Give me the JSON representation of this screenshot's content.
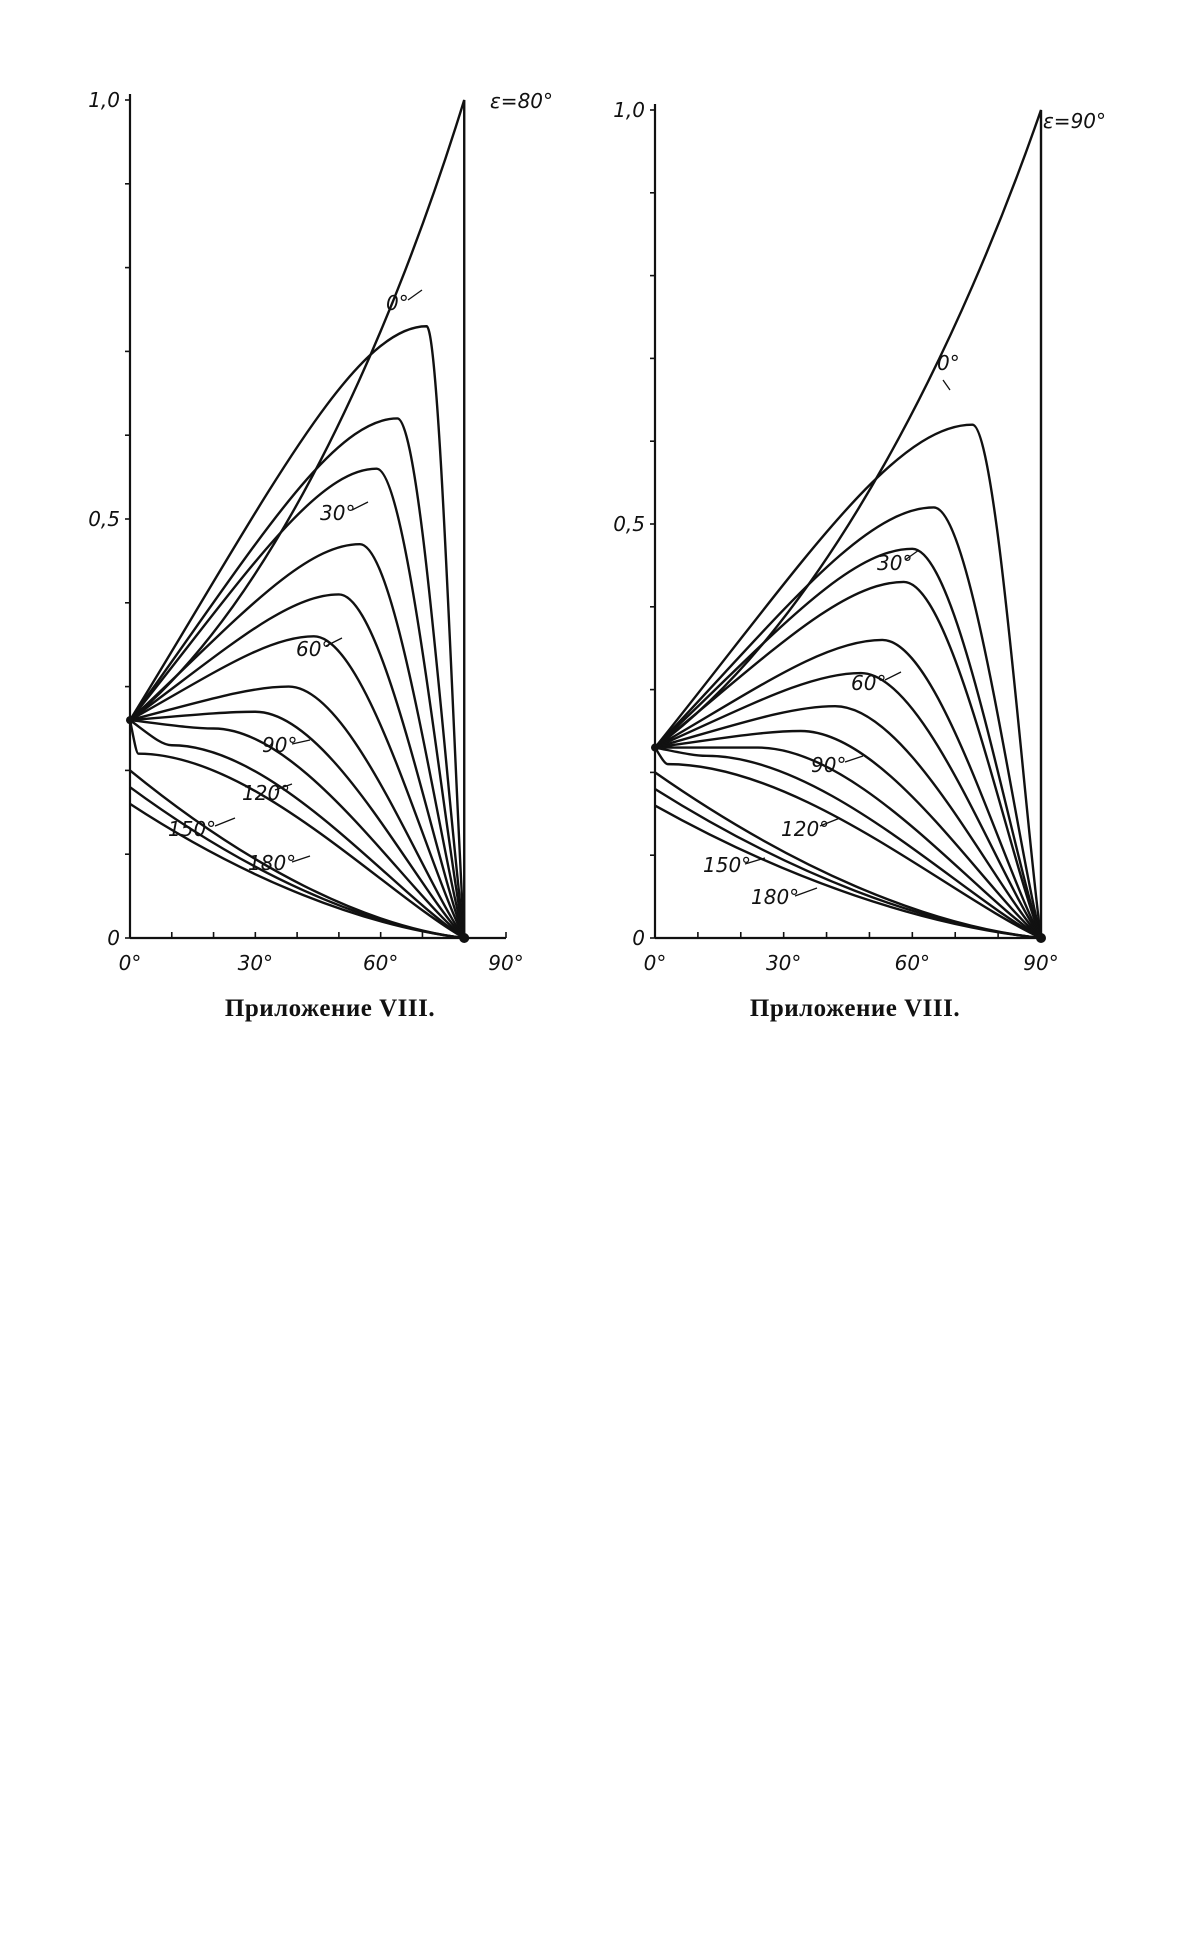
{
  "chart_data": [
    {
      "type": "line",
      "title": "",
      "caption": "Приложение VIII.",
      "xlabel": "",
      "ylabel": "",
      "xlim": [
        0,
        90
      ],
      "ylim": [
        0,
        1.0
      ],
      "x_tick_labels": [
        "0°",
        "30°",
        "60°",
        "90°"
      ],
      "x_tick_values": [
        0,
        30,
        60,
        90
      ],
      "y_tick_labels": [
        "0",
        "0,5",
        "1,0"
      ],
      "y_tick_values": [
        0,
        0.5,
        1.0
      ],
      "epsilon_label": "ε=80°",
      "x_end": 80,
      "y_start": 0.26,
      "curve_labels": [
        "0°",
        "30°",
        "60°",
        "90°",
        "120°",
        "150°",
        "180°"
      ],
      "series": [
        {
          "peak_x": 80,
          "peak_y": 1.0
        },
        {
          "peak_x": 71,
          "peak_y": 0.73
        },
        {
          "peak_x": 64,
          "peak_y": 0.62
        },
        {
          "peak_x": 59,
          "peak_y": 0.56
        },
        {
          "peak_x": 55,
          "peak_y": 0.47
        },
        {
          "peak_x": 50,
          "peak_y": 0.41
        },
        {
          "peak_x": 44,
          "peak_y": 0.36
        },
        {
          "peak_x": 38,
          "peak_y": 0.3
        },
        {
          "peak_x": 30,
          "peak_y": 0.27
        },
        {
          "peak_x": 20,
          "peak_y": 0.25
        },
        {
          "peak_x": 10,
          "peak_y": 0.23
        },
        {
          "peak_x": 2,
          "peak_y": 0.22
        },
        {
          "peak_x": 0,
          "peak_y": 0.2
        },
        {
          "peak_x": 0,
          "peak_y": 0.18
        },
        {
          "peak_x": 0,
          "peak_y": 0.16
        }
      ]
    },
    {
      "type": "line",
      "title": "",
      "caption": "Приложение VIII.",
      "xlabel": "",
      "ylabel": "",
      "xlim": [
        0,
        90
      ],
      "ylim": [
        0,
        1.0
      ],
      "x_tick_labels": [
        "0°",
        "30°",
        "60°",
        "90°"
      ],
      "x_tick_values": [
        0,
        30,
        60,
        90
      ],
      "y_tick_labels": [
        "0",
        "0,5",
        "1,0"
      ],
      "y_tick_values": [
        0,
        0.5,
        1.0
      ],
      "epsilon_label": "ε=90°",
      "x_end": 90,
      "y_start": 0.23,
      "curve_labels": [
        "0°",
        "30°",
        "60°",
        "90°",
        "120°",
        "150°",
        "180°"
      ],
      "series": [
        {
          "peak_x": 90,
          "peak_y": 1.0
        },
        {
          "peak_x": 74,
          "peak_y": 0.62
        },
        {
          "peak_x": 65,
          "peak_y": 0.52
        },
        {
          "peak_x": 60,
          "peak_y": 0.47
        },
        {
          "peak_x": 58,
          "peak_y": 0.43
        },
        {
          "peak_x": 53,
          "peak_y": 0.36
        },
        {
          "peak_x": 48,
          "peak_y": 0.32
        },
        {
          "peak_x": 42,
          "peak_y": 0.28
        },
        {
          "peak_x": 34,
          "peak_y": 0.25
        },
        {
          "peak_x": 24,
          "peak_y": 0.23
        },
        {
          "peak_x": 12,
          "peak_y": 0.22
        },
        {
          "peak_x": 3,
          "peak_y": 0.21
        },
        {
          "peak_x": 0,
          "peak_y": 0.2
        },
        {
          "peak_x": 0,
          "peak_y": 0.18
        },
        {
          "peak_x": 0,
          "peak_y": 0.16
        }
      ]
    }
  ]
}
